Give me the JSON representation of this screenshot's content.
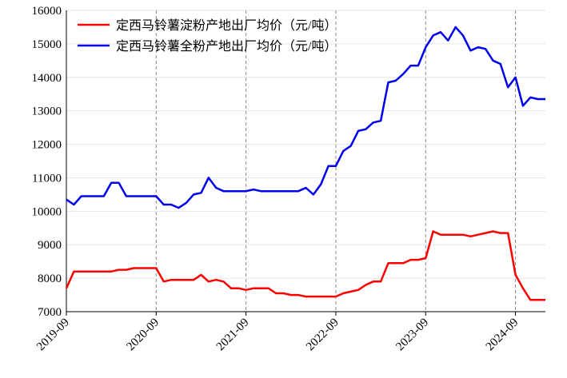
{
  "chart_data": {
    "type": "line",
    "x": [
      "2019-09",
      "2019-10",
      "2019-11",
      "2019-12",
      "2020-01",
      "2020-02",
      "2020-03",
      "2020-04",
      "2020-05",
      "2020-06",
      "2020-07",
      "2020-08",
      "2020-09",
      "2020-10",
      "2020-11",
      "2020-12",
      "2021-01",
      "2021-02",
      "2021-03",
      "2021-04",
      "2021-05",
      "2021-06",
      "2021-07",
      "2021-08",
      "2021-09",
      "2021-10",
      "2021-11",
      "2021-12",
      "2022-01",
      "2022-02",
      "2022-03",
      "2022-04",
      "2022-05",
      "2022-06",
      "2022-07",
      "2022-08",
      "2022-09",
      "2022-10",
      "2022-11",
      "2022-12",
      "2023-01",
      "2023-02",
      "2023-03",
      "2023-04",
      "2023-05",
      "2023-06",
      "2023-07",
      "2023-08",
      "2023-09",
      "2023-10",
      "2023-11",
      "2023-12",
      "2024-01",
      "2024-02",
      "2024-03",
      "2024-04",
      "2024-05",
      "2024-06",
      "2024-07",
      "2024-08",
      "2024-09",
      "2024-10",
      "2024-11",
      "2024-12",
      "2025-01"
    ],
    "series": [
      {
        "name": "定西马铃薯淀粉产地出厂均价（元/吨）",
        "color": "#ff0000",
        "values": [
          7700,
          8200,
          8200,
          8200,
          8200,
          8200,
          8200,
          8250,
          8250,
          8300,
          8300,
          8300,
          8300,
          7900,
          7950,
          7950,
          7950,
          7950,
          8100,
          7900,
          7950,
          7900,
          7700,
          7700,
          7650,
          7700,
          7700,
          7700,
          7550,
          7550,
          7500,
          7500,
          7450,
          7450,
          7450,
          7450,
          7450,
          7550,
          7600,
          7650,
          7800,
          7900,
          7900,
          8450,
          8450,
          8450,
          8550,
          8550,
          8600,
          9400,
          9300,
          9300,
          9300,
          9300,
          9250,
          9300,
          9350,
          9400,
          9350,
          9350,
          8100,
          7700,
          7350,
          7350,
          7350
        ]
      },
      {
        "name": "定西马铃薯全粉产地出厂均价（元/吨）",
        "color": "#0000ee",
        "values": [
          10350,
          10200,
          10450,
          10450,
          10450,
          10450,
          10850,
          10850,
          10450,
          10450,
          10450,
          10450,
          10450,
          10200,
          10200,
          10100,
          10250,
          10500,
          10550,
          11000,
          10700,
          10600,
          10600,
          10600,
          10600,
          10650,
          10600,
          10600,
          10600,
          10600,
          10600,
          10600,
          10700,
          10500,
          10800,
          11350,
          11350,
          11800,
          11950,
          12400,
          12450,
          12650,
          12700,
          13850,
          13900,
          14100,
          14350,
          14350,
          14900,
          15250,
          15350,
          15100,
          15500,
          15250,
          14800,
          14900,
          14850,
          14500,
          14400,
          13700,
          14000,
          13150,
          13400,
          13350,
          13350
        ]
      }
    ],
    "xticks": [
      "2019-09",
      "2020-09",
      "2021-09",
      "2022-09",
      "2023-09",
      "2024-09"
    ],
    "ylim": [
      7000,
      16000
    ],
    "yticks": [
      7000,
      8000,
      9000,
      10000,
      11000,
      12000,
      13000,
      14000,
      15000,
      16000
    ],
    "grid": true,
    "legend": "upper left"
  }
}
